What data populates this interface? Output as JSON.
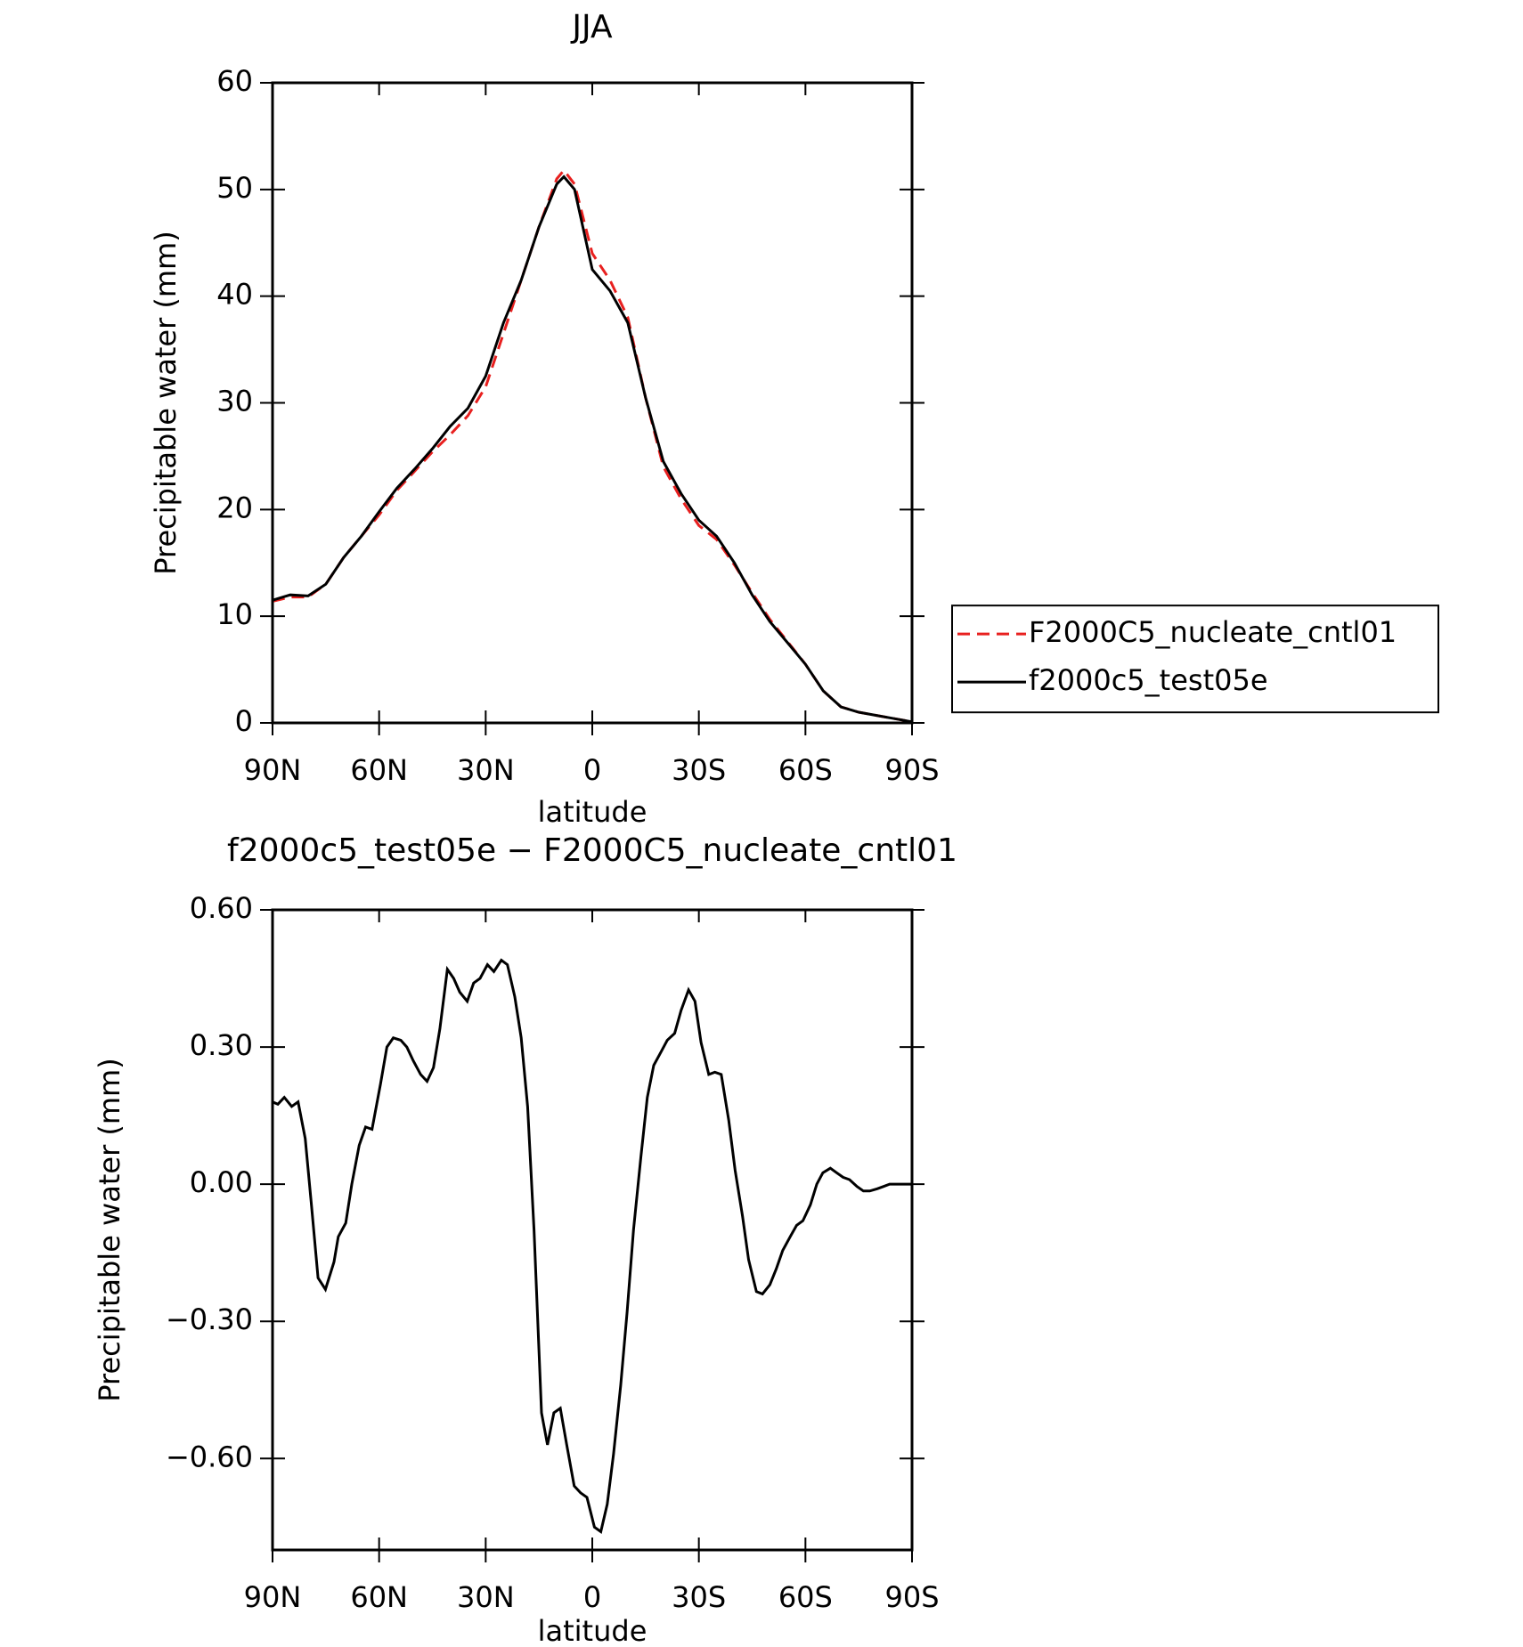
{
  "chart_data": [
    {
      "type": "line",
      "title": "JJA",
      "xlabel": "latitude",
      "ylabel": "Precipitable water (mm)",
      "x": [
        90,
        85,
        80,
        75,
        70,
        65,
        60,
        55,
        50,
        45,
        40,
        35,
        30,
        25,
        20,
        15,
        10,
        8,
        5,
        0,
        -5,
        -10,
        -15,
        -20,
        -25,
        -30,
        -35,
        -40,
        -45,
        -50,
        -55,
        -60,
        -65,
        -70,
        -75,
        -80,
        -85,
        -90
      ],
      "series": [
        {
          "name": "F2000C5_nucleate_cntl01",
          "color": "#e8201f",
          "linestyle": "dashed",
          "values": [
            11.4,
            11.8,
            11.8,
            13,
            15.5,
            17.5,
            19.5,
            21.8,
            23.6,
            25.4,
            27,
            28.8,
            31.5,
            36.5,
            41.5,
            46.5,
            51,
            51.8,
            50.5,
            44,
            41.5,
            38,
            30.5,
            24,
            21,
            18.5,
            17.2,
            14.8,
            12.2,
            9.7,
            7.6,
            5.5,
            3,
            1.5,
            1,
            0.7,
            0.4,
            0.1
          ]
        },
        {
          "name": "f2000c5_test05e",
          "color": "#000000",
          "linestyle": "solid",
          "values": [
            11.5,
            12,
            11.9,
            13,
            15.5,
            17.5,
            19.8,
            22,
            23.8,
            25.7,
            27.8,
            29.5,
            32.5,
            37.5,
            41.5,
            46.5,
            50.5,
            51.2,
            50,
            42.5,
            40.5,
            37.5,
            30.5,
            24.5,
            21.5,
            19,
            17.5,
            15,
            12,
            9.5,
            7.5,
            5.5,
            3,
            1.5,
            1,
            0.7,
            0.4,
            0.1
          ]
        }
      ],
      "xlim": [
        90,
        -90
      ],
      "xticks": [
        {
          "value": 90,
          "label": "90N"
        },
        {
          "value": 60,
          "label": "60N"
        },
        {
          "value": 30,
          "label": "30N"
        },
        0,
        {
          "value": -30,
          "label": "30S"
        },
        {
          "value": -60,
          "label": "60S"
        },
        {
          "value": -90,
          "label": "90S"
        }
      ],
      "ylim": [
        0,
        60
      ],
      "yticks": [
        0,
        10,
        20,
        30,
        40,
        50,
        60
      ],
      "legend": "right"
    },
    {
      "type": "line",
      "title": "f2000c5_test05e − F2000C5_nucleate_cntl01",
      "xlabel": "latitude",
      "ylabel": "Precipitable water (mm)",
      "color": "#000000",
      "x": [
        90,
        88.5,
        86.7,
        84.6,
        82.8,
        80.8,
        79,
        77.2,
        75.1,
        72.7,
        71.5,
        69.4,
        67.7,
        65.6,
        63.8,
        62,
        59.6,
        57.8,
        56,
        53.9,
        52.2,
        50.4,
        48.3,
        46.5,
        44.7,
        42.9,
        40.8,
        39,
        37.3,
        35.2,
        33.4,
        31.6,
        29.5,
        27.7,
        25.6,
        23.9,
        21.8,
        20,
        18.2,
        16.4,
        14.3,
        12.6,
        10.8,
        9,
        7.2,
        5.1,
        3.3,
        1.5,
        -0.6,
        -2.4,
        -4.2,
        -6,
        -8,
        -9.8,
        -11.6,
        -13.7,
        -15.5,
        -17.3,
        -19.4,
        -21.1,
        -23.2,
        -25,
        -27.1,
        -28.9,
        -30.6,
        -32.8,
        -34.5,
        -36.3,
        -38.4,
        -40.2,
        -42.3,
        -44,
        -46.2,
        -47.9,
        -50,
        -51.8,
        -53.6,
        -55.7,
        -57.5,
        -59.3,
        -61.4,
        -63.2,
        -64.9,
        -67,
        -68.8,
        -70.6,
        -72.4,
        -74.5,
        -76.3,
        -78.1,
        -80.2,
        -82,
        -83.7,
        -85.8,
        -87.6,
        -90
      ],
      "values": [
        0.18,
        0.175,
        0.19,
        0.17,
        0.18,
        0.1,
        -0.05,
        -0.205,
        -0.23,
        -0.17,
        -0.115,
        -0.085,
        0,
        0.085,
        0.125,
        0.12,
        0.22,
        0.3,
        0.32,
        0.315,
        0.3,
        0.27,
        0.24,
        0.225,
        0.255,
        0.34,
        0.47,
        0.45,
        0.42,
        0.4,
        0.44,
        0.45,
        0.48,
        0.465,
        0.49,
        0.48,
        0.41,
        0.32,
        0.17,
        -0.1,
        -0.5,
        -0.57,
        -0.5,
        -0.49,
        -0.57,
        -0.66,
        -0.675,
        -0.685,
        -0.75,
        -0.76,
        -0.7,
        -0.59,
        -0.44,
        -0.28,
        -0.1,
        0.06,
        0.19,
        0.26,
        0.29,
        0.315,
        0.33,
        0.38,
        0.425,
        0.4,
        0.31,
        0.24,
        0.245,
        0.24,
        0.14,
        0.03,
        -0.07,
        -0.165,
        -0.235,
        -0.24,
        -0.22,
        -0.185,
        -0.145,
        -0.115,
        -0.09,
        -0.08,
        -0.045,
        0,
        0.025,
        0.035,
        0.025,
        0.015,
        0.01,
        -0.005,
        -0.015,
        -0.015,
        -0.01,
        -0.005,
        0,
        0,
        0,
        0
      ],
      "xlim": [
        90,
        -90
      ],
      "xticks": [
        {
          "value": 90,
          "label": "90N"
        },
        {
          "value": 60,
          "label": "60N"
        },
        {
          "value": 30,
          "label": "30N"
        },
        0,
        {
          "value": -30,
          "label": "30S"
        },
        {
          "value": -60,
          "label": "60S"
        },
        {
          "value": -90,
          "label": "90S"
        }
      ],
      "ylim": [
        -0.8,
        0.6
      ],
      "yticks": [
        {
          "value": 0.6,
          "label": "0.60"
        },
        {
          "value": 0.3,
          "label": "0.30"
        },
        {
          "value": 0,
          "label": "0.00"
        },
        {
          "value": -0.3,
          "label": "−0.30"
        },
        {
          "value": -0.6,
          "label": "−0.60"
        }
      ]
    }
  ]
}
